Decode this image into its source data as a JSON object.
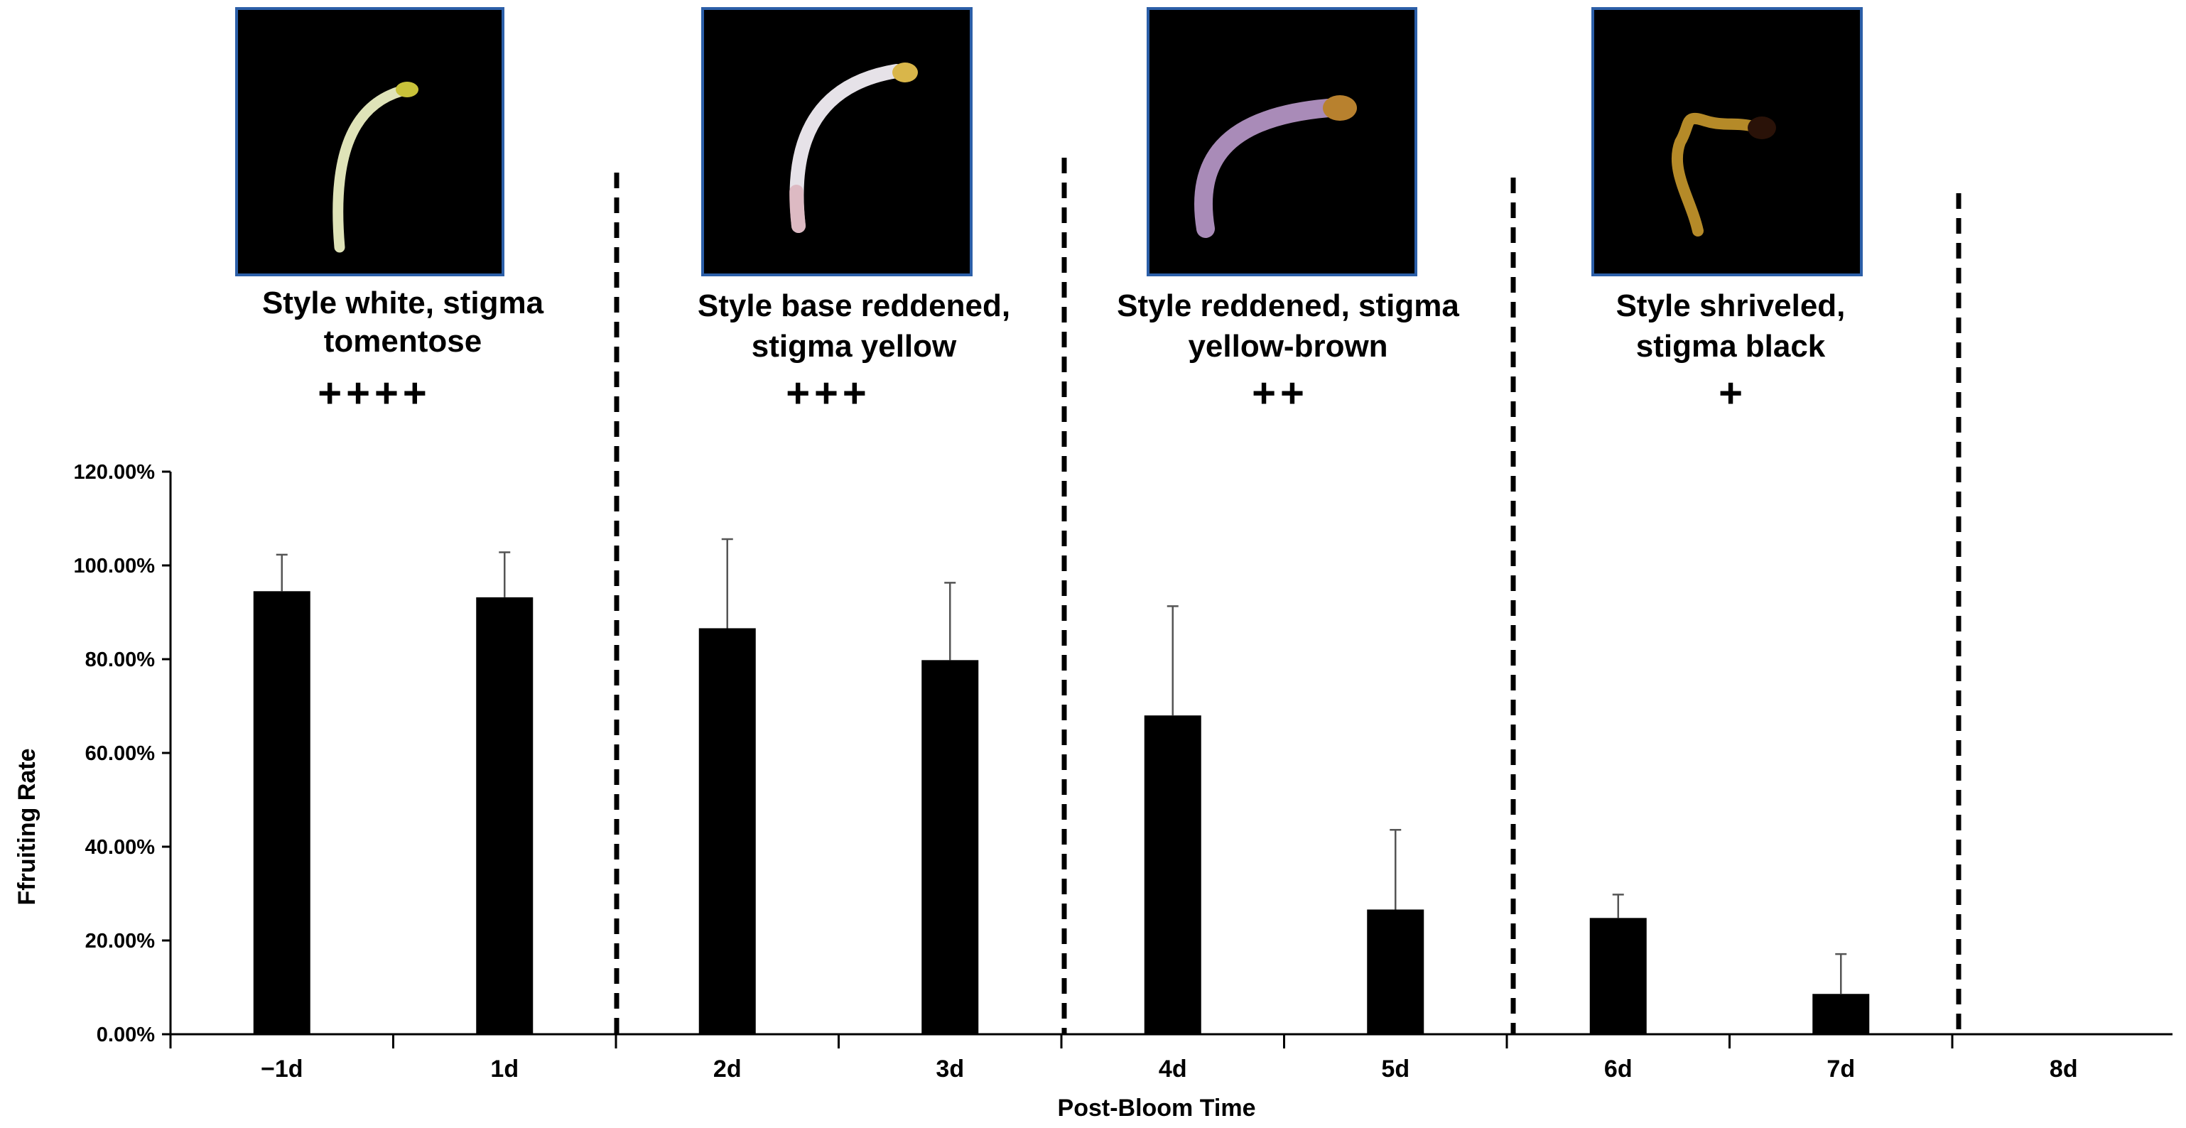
{
  "chart_data": {
    "type": "bar",
    "title": "",
    "xlabel": "Post-Bloom Time",
    "ylabel": "Ffruiting Rate",
    "categories": [
      "−1d",
      "1d",
      "2d",
      "3d",
      "4d",
      "5d",
      "6d",
      "7d",
      "8d"
    ],
    "values": [
      94.5,
      93.2,
      86.6,
      79.8,
      68.0,
      26.6,
      24.8,
      8.6,
      0
    ],
    "errors": [
      7.8,
      9.6,
      19.0,
      16.5,
      23.3,
      17.0,
      5.0,
      8.5,
      0
    ],
    "ylim": [
      0,
      120
    ],
    "yticks": [
      0,
      20,
      40,
      60,
      80,
      100,
      120
    ],
    "ytick_labels": [
      "0.00%",
      "20.00%",
      "40.00%",
      "60.00%",
      "80.00%",
      "100.00%",
      "120.00%"
    ],
    "grid": false,
    "legend": "none",
    "bar_color": "#000000",
    "divider_color": "#000000",
    "stages": [
      {
        "description_lines": [
          "Style white, stigma",
          "tomentose"
        ],
        "grade": "++++",
        "photo": "white style with tomentose yellow-green stigma",
        "style_color": "#dfe3b8",
        "stigma_color": "#c9c23a",
        "frame_color": "#2c5fa8"
      },
      {
        "description_lines": [
          "Style base reddened,",
          "stigma yellow"
        ],
        "grade": "+++",
        "photo": "white style with reddened base and yellow stigma",
        "style_color": "#e6e2e8",
        "stigma_color": "#d9b64a",
        "frame_color": "#2c5fa8"
      },
      {
        "description_lines": [
          "Style reddened, stigma",
          "yellow-brown"
        ],
        "grade": "++",
        "photo": "reddened purple style with yellow-brown stigma",
        "style_color": "#a98bb8",
        "stigma_color": "#b8812e",
        "frame_color": "#2c5fa8"
      },
      {
        "description_lines": [
          "Style shriveled,",
          "stigma black"
        ],
        "grade": "+",
        "photo": "shriveled yellow-brown style with black stigma",
        "style_color": "#b58a28",
        "stigma_color": "#2a1208",
        "frame_color": "#2c5fa8"
      }
    ]
  }
}
